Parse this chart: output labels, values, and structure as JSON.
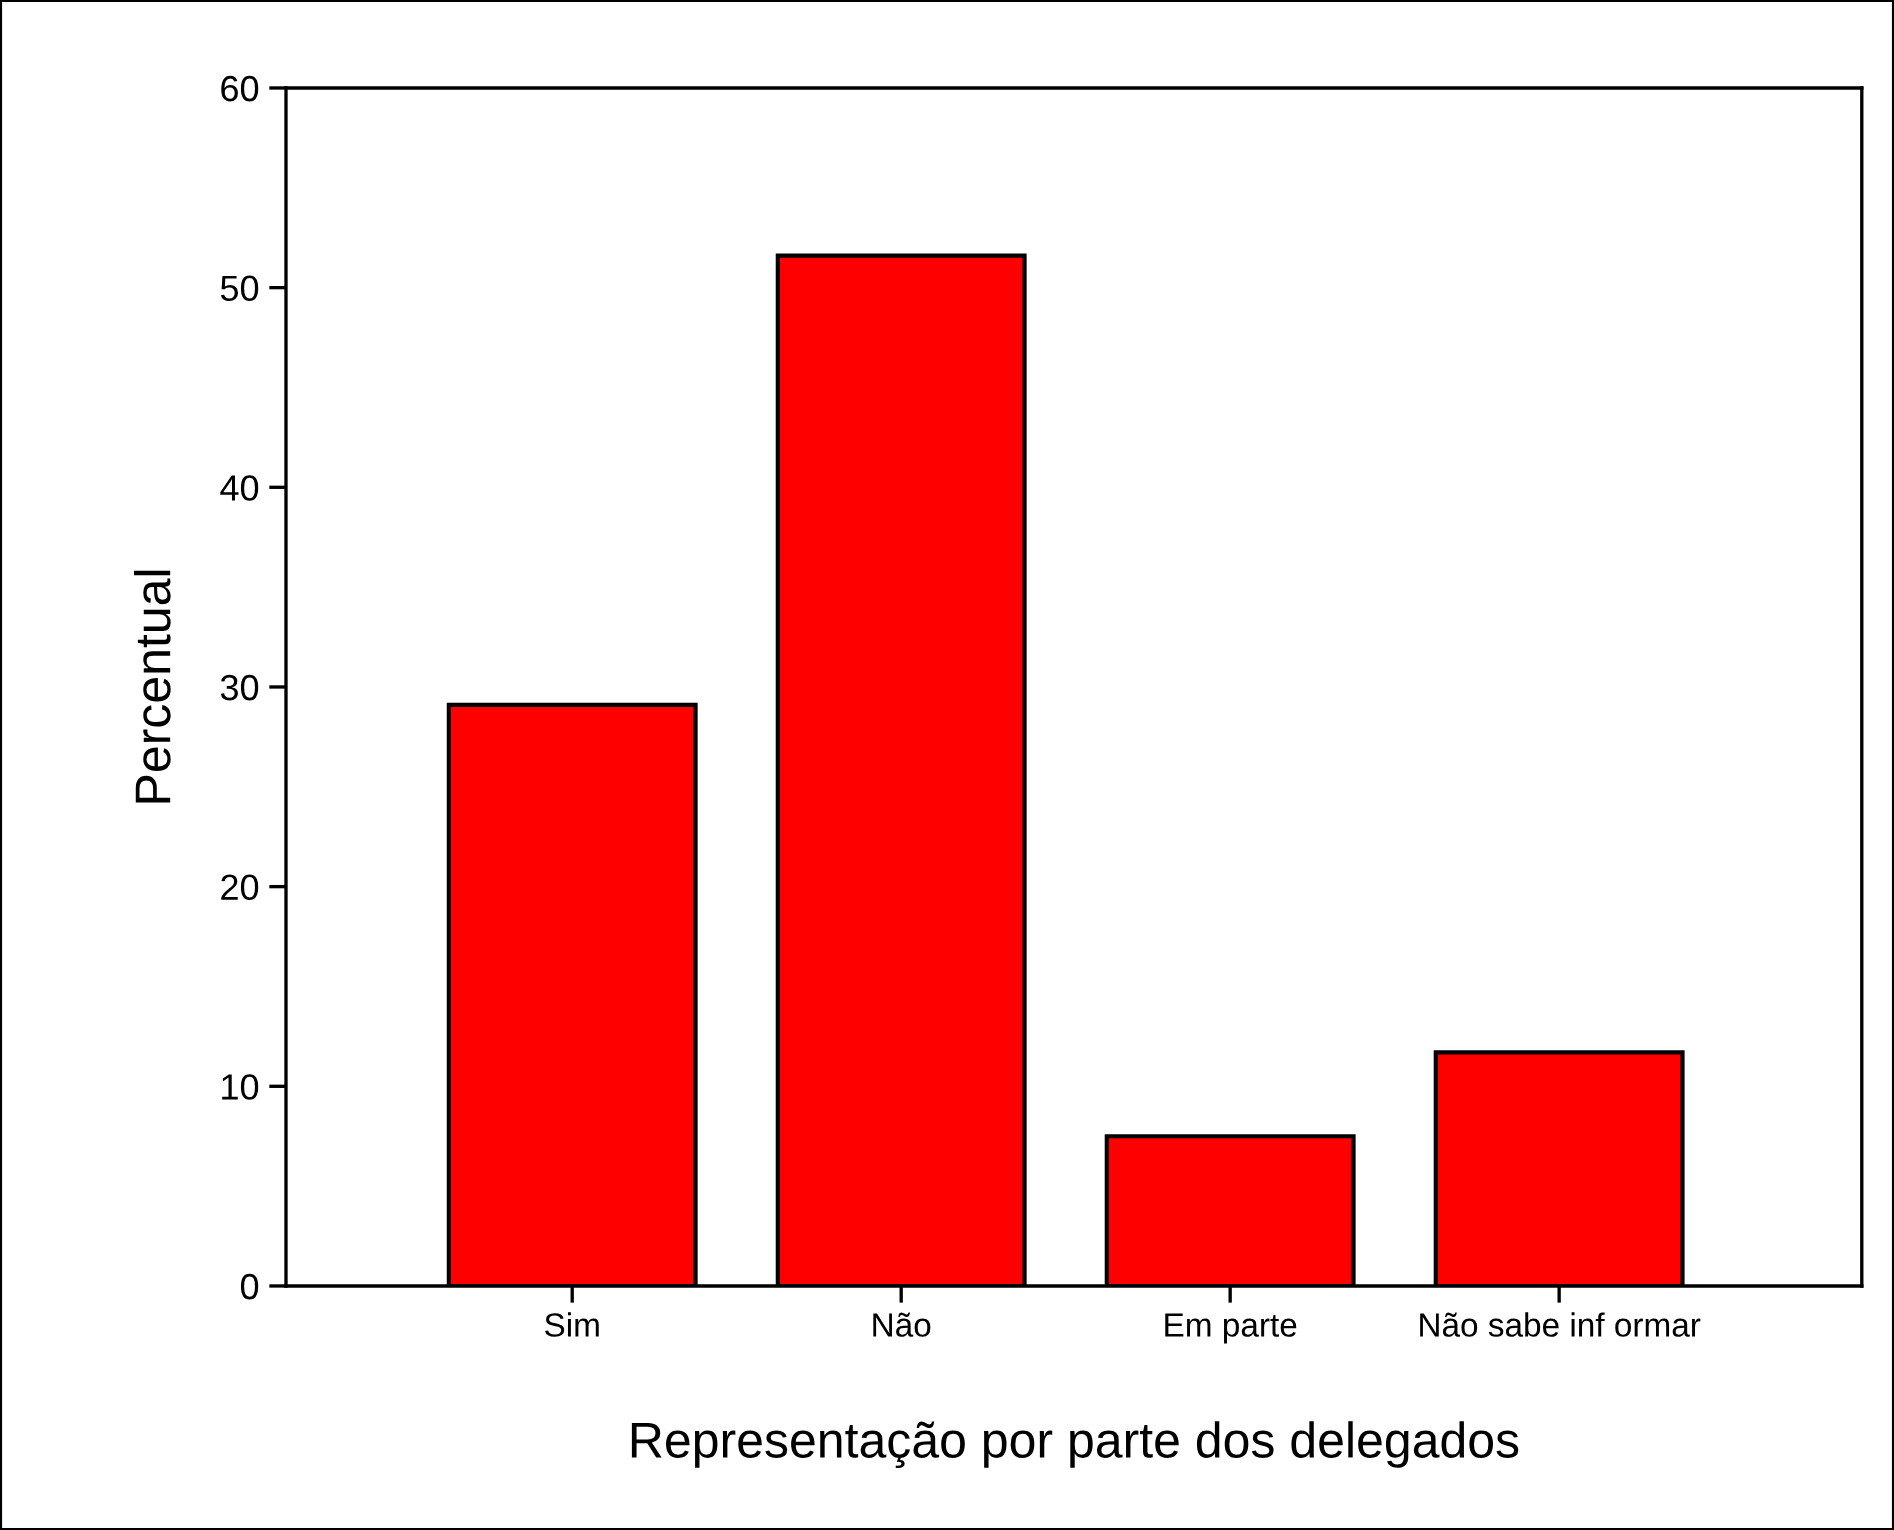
{
  "chart_data": {
    "type": "bar",
    "xlabel": "Representação por parte dos delegados",
    "ylabel": "Percentual",
    "categories": [
      "Sim",
      "Não",
      "Em parte",
      "Não sabe inf ormar"
    ],
    "values": [
      29.1,
      51.6,
      7.5,
      11.7
    ],
    "color": "#ff0000",
    "ylim": [
      0,
      60
    ],
    "yticks": [
      0,
      10,
      20,
      30,
      40,
      50,
      60
    ],
    "grid": false,
    "legend": false
  }
}
